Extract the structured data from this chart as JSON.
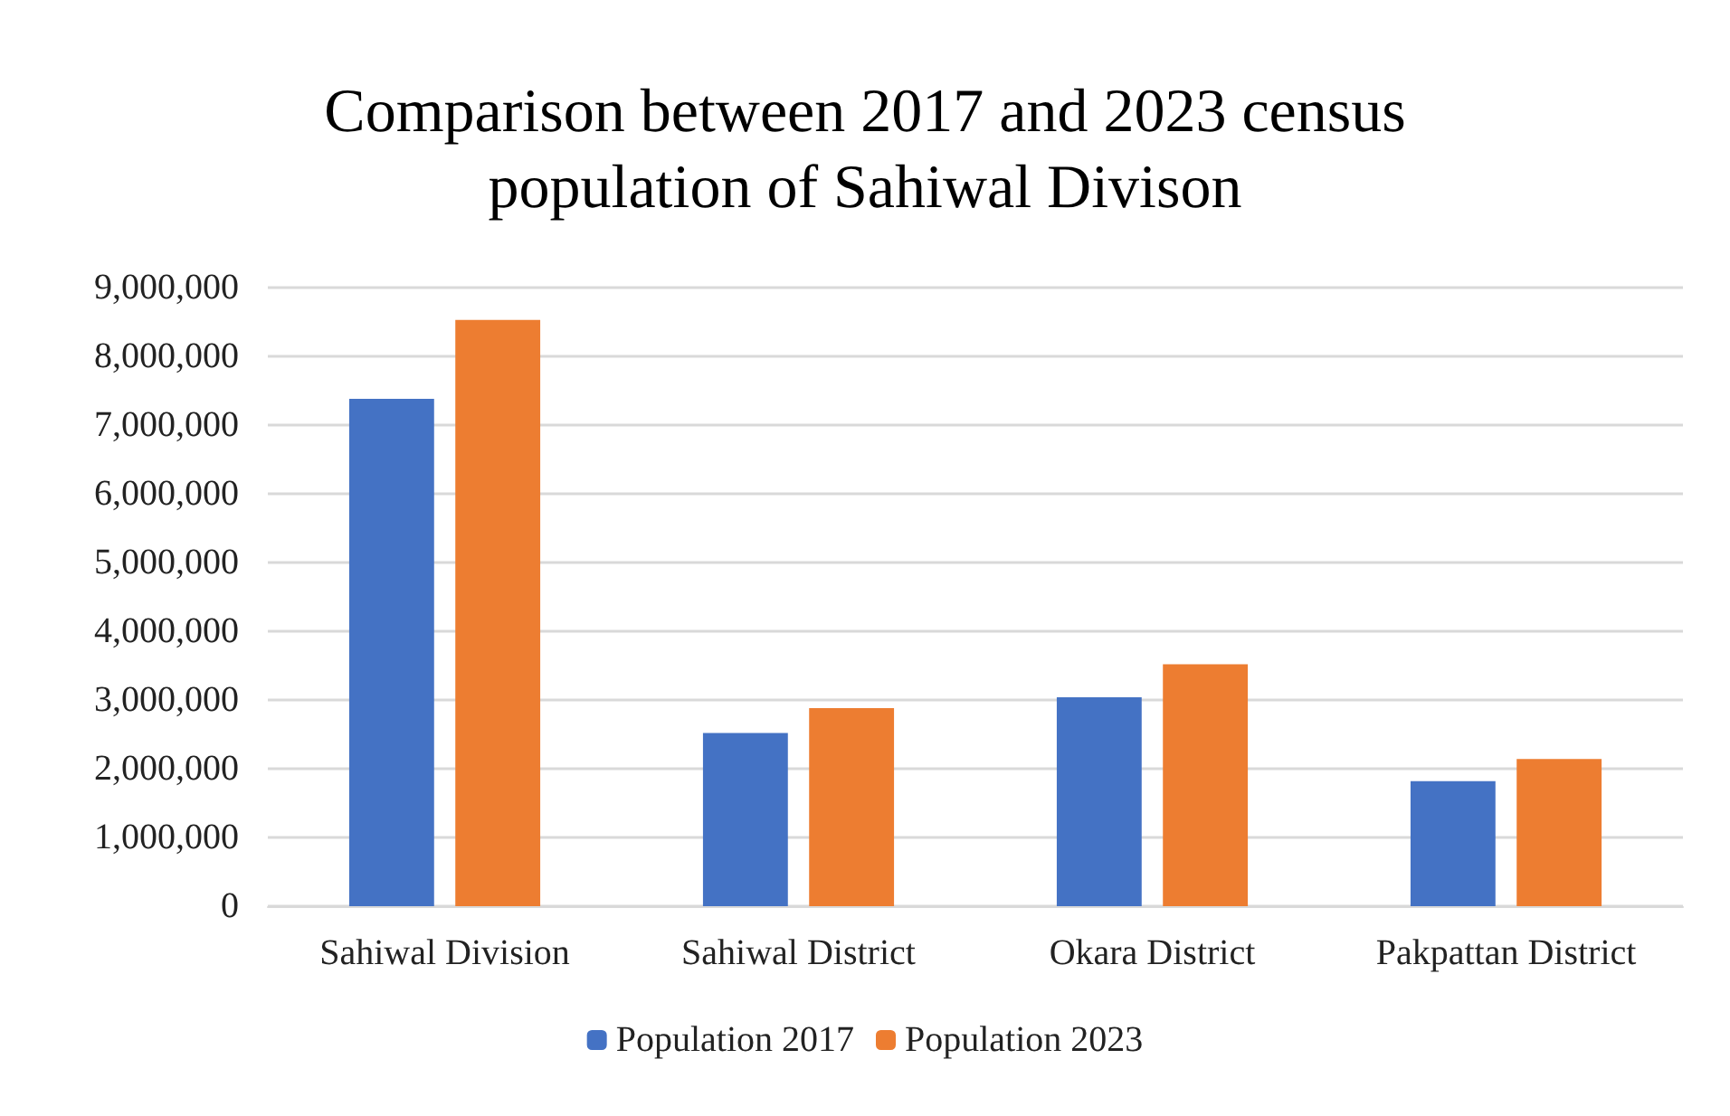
{
  "chart_data": {
    "type": "bar",
    "title": "Comparison between 2017 and 2023 census\npopulation of Sahiwal Divison",
    "categories": [
      "Sahiwal Division",
      "Sahiwal District",
      "Okara District",
      "Pakpattan District"
    ],
    "series": [
      {
        "name": "Population 2017",
        "color": "#4472c4",
        "values": [
          7380000,
          2520000,
          3040000,
          1820000
        ]
      },
      {
        "name": "Population 2023",
        "color": "#ed7d31",
        "values": [
          8530000,
          2880000,
          3520000,
          2140000
        ]
      }
    ],
    "ylim": [
      0,
      9000000
    ],
    "yticks": [
      0,
      {
        "value": 1000000,
        "label": "1,000,000"
      },
      {
        "value": 2000000,
        "label": "2,000,000"
      },
      {
        "value": 3000000,
        "label": "3,000,000"
      },
      {
        "value": 4000000,
        "label": "4,000,000"
      },
      {
        "value": 5000000,
        "label": "5,000,000"
      },
      {
        "value": 6000000,
        "label": "6,000,000"
      },
      {
        "value": 7000000,
        "label": "7,000,000"
      },
      {
        "value": 8000000,
        "label": "8,000,000"
      },
      {
        "value": 9000000,
        "label": "9,000,000"
      }
    ],
    "grid": "y",
    "legend": "bottom"
  }
}
